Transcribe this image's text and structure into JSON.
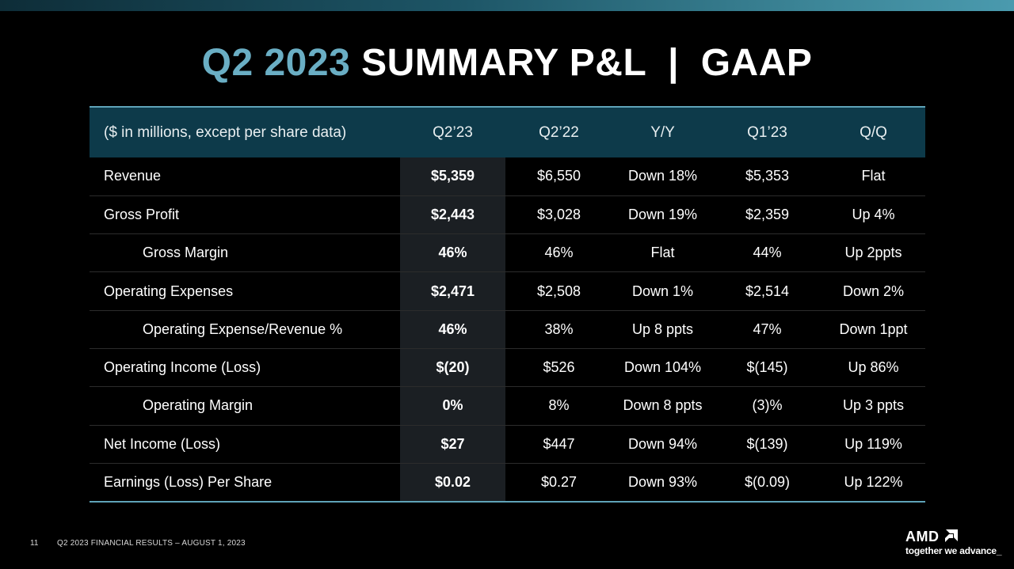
{
  "title": {
    "accent": "Q2 2023",
    "main": "SUMMARY P&L  |  GAAP"
  },
  "table": {
    "header": [
      "($ in millions, except per share data)",
      "Q2’23",
      "Q2’22",
      "Y/Y",
      "Q1’23",
      "Q/Q"
    ],
    "rows": [
      {
        "label": "Revenue",
        "indent": false,
        "q2_23": "$5,359",
        "q2_22": "$6,550",
        "yy": "Down 18%",
        "q1_23": "$5,353",
        "qq": "Flat"
      },
      {
        "label": "Gross Profit",
        "indent": false,
        "q2_23": "$2,443",
        "q2_22": "$3,028",
        "yy": "Down 19%",
        "q1_23": "$2,359",
        "qq": "Up 4%"
      },
      {
        "label": "Gross Margin",
        "indent": true,
        "q2_23": "46%",
        "q2_22": "46%",
        "yy": "Flat",
        "q1_23": "44%",
        "qq": "Up 2ppts"
      },
      {
        "label": "Operating Expenses",
        "indent": false,
        "q2_23": "$2,471",
        "q2_22": "$2,508",
        "yy": "Down 1%",
        "q1_23": "$2,514",
        "qq": "Down 2%"
      },
      {
        "label": "Operating Expense/Revenue %",
        "indent": true,
        "q2_23": "46%",
        "q2_22": "38%",
        "yy": "Up 8 ppts",
        "q1_23": "47%",
        "qq": "Down 1ppt"
      },
      {
        "label": "Operating Income (Loss)",
        "indent": false,
        "q2_23": "$(20)",
        "q2_22": "$526",
        "yy": "Down 104%",
        "q1_23": "$(145)",
        "qq": "Up 86%"
      },
      {
        "label": "Operating Margin",
        "indent": true,
        "q2_23": "0%",
        "q2_22": "8%",
        "yy": "Down 8 ppts",
        "q1_23": "(3)%",
        "qq": "Up 3 ppts"
      },
      {
        "label": "Net Income (Loss)",
        "indent": false,
        "q2_23": "$27",
        "q2_22": "$447",
        "yy": "Down 94%",
        "q1_23": "$(139)",
        "qq": "Up 119%"
      },
      {
        "label": "Earnings (Loss) Per Share",
        "indent": false,
        "q2_23": "$0.02",
        "q2_22": "$0.27",
        "yy": "Down 93%",
        "q1_23": "$(0.09)",
        "qq": "Up 122%"
      }
    ]
  },
  "footer": {
    "page_number": "11",
    "text": "Q2 2023 FINANCIAL RESULTS – AUGUST 1, 2023"
  },
  "logo": {
    "wordmark": "AMD",
    "tagline": "together we advance_",
    "icon": "amd-arrow-icon"
  },
  "colors": {
    "accent": "#6aaec4",
    "header_bg": "#0d3a4a",
    "rule": "#5fa3b8"
  }
}
